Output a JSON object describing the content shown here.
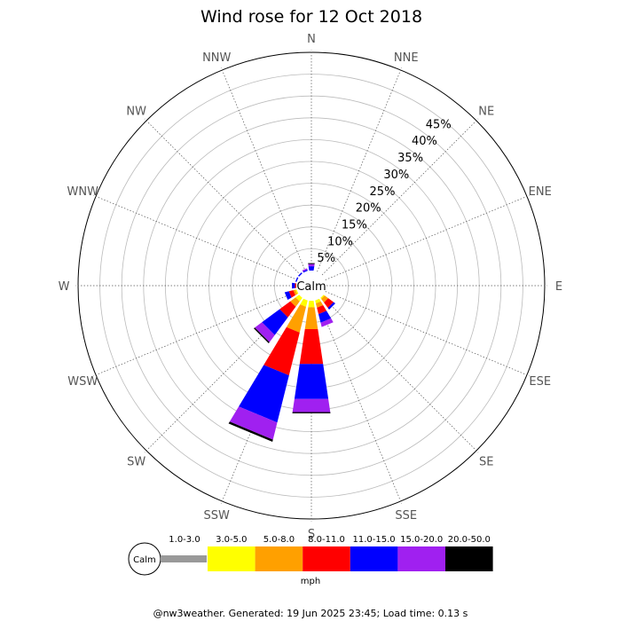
{
  "chart_data": {
    "type": "wind-rose",
    "title": "Wind rose for 12 Oct 2018",
    "directions": [
      "N",
      "NNE",
      "NE",
      "ENE",
      "E",
      "ESE",
      "SE",
      "SSE",
      "S",
      "SSW",
      "SW",
      "WSW",
      "W",
      "WNW",
      "NW",
      "NNW"
    ],
    "radial_ticks": [
      "5%",
      "10%",
      "15%",
      "20%",
      "25%",
      "30%",
      "35%",
      "40%",
      "45%"
    ],
    "radial_max_percent": 50,
    "calm_label": "Calm",
    "speed_unit": "mph",
    "speed_bins": [
      {
        "label": "1.0-3.0",
        "color": "#999999"
      },
      {
        "label": "3.0-5.0",
        "color": "#ffff00"
      },
      {
        "label": "5.0-8.0",
        "color": "#ffa000"
      },
      {
        "label": "8.0-11.0",
        "color": "#ff0000"
      },
      {
        "label": "11.0-15.0",
        "color": "#0000ff"
      },
      {
        "label": "15.0-20.0",
        "color": "#a020f0"
      },
      {
        "label": "20.0-50.0",
        "color": "#000000"
      }
    ],
    "series": [
      {
        "direction": "N",
        "values": [
          0.0,
          0.0,
          0.0,
          0.0,
          1.0,
          0.5,
          0.2
        ]
      },
      {
        "direction": "NNW",
        "values": [
          0.0,
          0.0,
          0.0,
          0.0,
          0.3,
          0.3,
          0.0
        ]
      },
      {
        "direction": "NW",
        "values": [
          0.0,
          0.0,
          0.0,
          0.0,
          0.3,
          0.0,
          0.0
        ]
      },
      {
        "direction": "WNW",
        "values": [
          0.0,
          0.0,
          0.0,
          0.0,
          0.3,
          0.0,
          0.0
        ]
      },
      {
        "direction": "W",
        "values": [
          0.0,
          0.0,
          0.0,
          0.3,
          0.7,
          0.0,
          0.0
        ]
      },
      {
        "direction": "WSW",
        "values": [
          0.0,
          0.3,
          0.5,
          1.0,
          1.0,
          0.0,
          0.0
        ]
      },
      {
        "direction": "SW",
        "values": [
          0.0,
          1.0,
          1.5,
          3.0,
          5.0,
          2.0,
          0.3
        ]
      },
      {
        "direction": "SSW",
        "values": [
          0.0,
          1.5,
          6.0,
          10.0,
          11.0,
          4.0,
          0.5
        ]
      },
      {
        "direction": "S",
        "values": [
          0.0,
          1.5,
          5.0,
          8.0,
          8.0,
          3.0,
          0.3
        ]
      },
      {
        "direction": "SSE",
        "values": [
          0.0,
          0.7,
          1.0,
          1.5,
          2.0,
          1.0,
          0.0
        ]
      },
      {
        "direction": "SE",
        "values": [
          0.0,
          0.3,
          1.0,
          1.5,
          0.5,
          0.0,
          0.0
        ]
      }
    ]
  },
  "footer": "@nw3weather. Generated: 19 Jun 2025 23:45; Load time: 0.13 s"
}
